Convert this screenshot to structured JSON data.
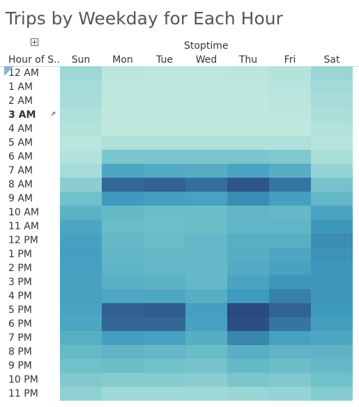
{
  "title": "Trips by Weekday for Each Hour",
  "column_group_title": "Stoptime",
  "row_header_title": "Hour of S..",
  "selected_row": "3 AM",
  "icons": {
    "expand": "plus-box-icon",
    "drill": "drill-cursor-icon"
  },
  "chart_data": {
    "type": "heatmap",
    "title": "Trips by Weekday for Each Hour",
    "x_title": "Stoptime",
    "y_title": "Hour of S..",
    "columns": [
      "Sun",
      "Mon",
      "Tue",
      "Wed",
      "Thu",
      "Fri",
      "Sat"
    ],
    "rows": [
      "12 AM",
      "1 AM",
      "2 AM",
      "3 AM",
      "4 AM",
      "5 AM",
      "6 AM",
      "7 AM",
      "8 AM",
      "9 AM",
      "10 AM",
      "11 AM",
      "12 PM",
      "1 PM",
      "2 PM",
      "3 PM",
      "4 PM",
      "5 PM",
      "6 PM",
      "7 PM",
      "8 PM",
      "9 PM",
      "10 PM",
      "11 PM"
    ],
    "values": [
      [
        0.15,
        0.04,
        0.03,
        0.03,
        0.04,
        0.06,
        0.16
      ],
      [
        0.12,
        0.03,
        0.02,
        0.02,
        0.03,
        0.05,
        0.13
      ],
      [
        0.11,
        0.02,
        0.02,
        0.02,
        0.02,
        0.04,
        0.11
      ],
      [
        0.08,
        0.02,
        0.02,
        0.02,
        0.02,
        0.03,
        0.09
      ],
      [
        0.06,
        0.02,
        0.02,
        0.02,
        0.02,
        0.02,
        0.07
      ],
      [
        0.04,
        0.08,
        0.08,
        0.08,
        0.08,
        0.08,
        0.05
      ],
      [
        0.07,
        0.28,
        0.28,
        0.28,
        0.28,
        0.26,
        0.1
      ],
      [
        0.12,
        0.55,
        0.52,
        0.5,
        0.58,
        0.5,
        0.18
      ],
      [
        0.22,
        0.88,
        0.9,
        0.85,
        0.95,
        0.82,
        0.3
      ],
      [
        0.32,
        0.66,
        0.62,
        0.6,
        0.72,
        0.62,
        0.4
      ],
      [
        0.45,
        0.38,
        0.35,
        0.36,
        0.42,
        0.4,
        0.58
      ],
      [
        0.55,
        0.36,
        0.33,
        0.35,
        0.42,
        0.42,
        0.68
      ],
      [
        0.6,
        0.4,
        0.36,
        0.4,
        0.48,
        0.48,
        0.72
      ],
      [
        0.62,
        0.42,
        0.38,
        0.4,
        0.5,
        0.55,
        0.7
      ],
      [
        0.6,
        0.44,
        0.4,
        0.38,
        0.52,
        0.6,
        0.68
      ],
      [
        0.6,
        0.48,
        0.45,
        0.4,
        0.58,
        0.68,
        0.68
      ],
      [
        0.6,
        0.56,
        0.55,
        0.5,
        0.66,
        0.78,
        0.68
      ],
      [
        0.58,
        0.9,
        0.92,
        0.62,
        1.0,
        0.9,
        0.66
      ],
      [
        0.55,
        0.88,
        0.88,
        0.6,
        0.98,
        0.82,
        0.62
      ],
      [
        0.48,
        0.62,
        0.6,
        0.5,
        0.75,
        0.6,
        0.55
      ],
      [
        0.38,
        0.42,
        0.4,
        0.36,
        0.48,
        0.42,
        0.44
      ],
      [
        0.32,
        0.34,
        0.32,
        0.3,
        0.38,
        0.34,
        0.38
      ],
      [
        0.26,
        0.24,
        0.24,
        0.22,
        0.28,
        0.26,
        0.32
      ],
      [
        0.2,
        0.14,
        0.14,
        0.14,
        0.16,
        0.18,
        0.24
      ]
    ],
    "color_scale": [
      "#c4ebe0",
      "#2b4a7f"
    ],
    "legend": "none"
  }
}
